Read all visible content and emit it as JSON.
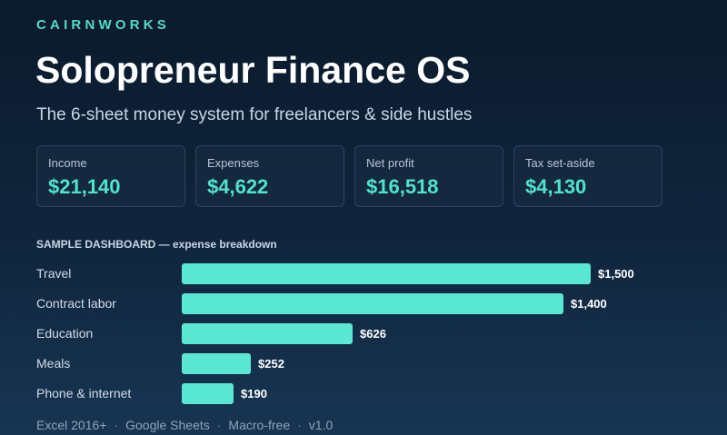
{
  "brand": "CAIRNWORKS",
  "title": "Solopreneur Finance OS",
  "subtitle": "The 6-sheet money system for freelancers & side hustles",
  "cards": [
    {
      "label": "Income",
      "value": "$21,140"
    },
    {
      "label": "Expenses",
      "value": "$4,622"
    },
    {
      "label": "Net profit",
      "value": "$16,518"
    },
    {
      "label": "Tax set-aside",
      "value": "$4,130"
    }
  ],
  "section_label": "SAMPLE DASHBOARD — expense breakdown",
  "chart_data": {
    "type": "bar",
    "orientation": "horizontal",
    "categories": [
      "Travel",
      "Contract labor",
      "Education",
      "Meals",
      "Phone & internet"
    ],
    "values": [
      1500,
      1400,
      626,
      252,
      190
    ],
    "value_labels": [
      "$1,500",
      "$1,400",
      "$626",
      "$252",
      "$190"
    ],
    "bar_color": "#5ae8d2"
  },
  "footer": {
    "items": [
      "Excel 2016+",
      "Google Sheets",
      "Macro-free",
      "v1.0"
    ],
    "separator": "·"
  },
  "colors": {
    "accent": "#4fdcc8",
    "bar": "#5ae8d2",
    "background_top": "#0b1a2c",
    "background_bottom": "#173552"
  }
}
